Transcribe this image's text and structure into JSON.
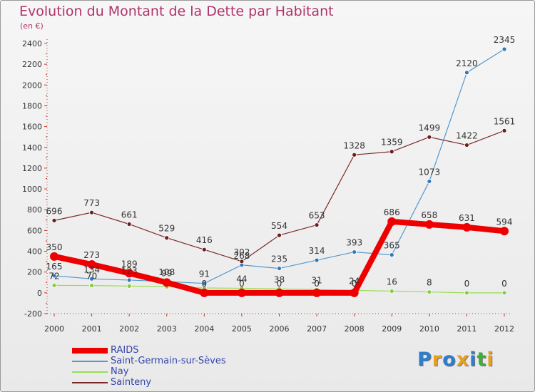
{
  "chart": {
    "title": "Evolution du Montant de la Dette par Habitant",
    "subtitle": "(en €)"
  },
  "brand": {
    "text": "Proxiti",
    "letters": [
      "P",
      "r",
      "o",
      "x",
      "i",
      "t",
      "i"
    ],
    "colors": [
      "#2a7fd1",
      "#e8a021",
      "#2a7fd1",
      "#e8a021",
      "#2a7fd1",
      "#3bb03b",
      "#e8a021"
    ]
  },
  "chart_data": {
    "type": "line",
    "title": "Evolution du Montant de la Dette par Habitant",
    "subtitle": "(en €)",
    "xlabel": "",
    "ylabel": "",
    "x": [
      2000,
      2001,
      2002,
      2003,
      2004,
      2005,
      2006,
      2007,
      2008,
      2009,
      2010,
      2011,
      2012
    ],
    "ylim": [
      -200,
      2400
    ],
    "yticks": [
      -200,
      0,
      200,
      400,
      600,
      800,
      1000,
      1200,
      1400,
      1600,
      1800,
      2000,
      2200,
      2400
    ],
    "grid": false,
    "legend": "bottom-left",
    "series": [
      {
        "name": "Nay",
        "color": "#99dd55",
        "values": [
          72,
          70,
          65,
          58,
          47,
          44,
          38,
          31,
          24,
          16,
          8,
          0,
          0
        ]
      },
      {
        "name": "Saint-Germain-sur-Sèves",
        "color": "#5599cc",
        "values": [
          165,
          134,
          123,
          108,
          91,
          268,
          235,
          314,
          393,
          365,
          1073,
          2120,
          2345
        ]
      },
      {
        "name": "Sainteny",
        "color": "#7a2a2a",
        "values": [
          696,
          773,
          661,
          529,
          416,
          302,
          554,
          653,
          1328,
          1359,
          1499,
          1422,
          1561
        ]
      },
      {
        "name": "RAIDS",
        "color": "#ee0000",
        "values": [
          350,
          273,
          189,
          99,
          0,
          0,
          0,
          0,
          0,
          686,
          658,
          631,
          594
        ]
      }
    ],
    "labels": {
      "Nay": [
        "72",
        "70",
        "",
        "",
        "",
        "44",
        "38",
        "31",
        "24",
        "16",
        "8",
        "0",
        "0"
      ],
      "Saint-Germain-sur-Sèves": [
        "165",
        "134",
        "123",
        "108",
        "91",
        "268",
        "235",
        "314",
        "393",
        "365",
        "1073",
        "2120",
        "2345"
      ],
      "Sainteny": [
        "696",
        "773",
        "661",
        "529",
        "416",
        "302",
        "554",
        "653",
        "1328",
        "1359",
        "1499",
        "1422",
        "1561"
      ],
      "RAIDS": [
        "350",
        "273",
        "189",
        "99",
        "0",
        "0",
        "0",
        "0",
        "0",
        "686",
        "658",
        "631",
        "594"
      ]
    },
    "legend_order": [
      "RAIDS",
      "Saint-Germain-sur-Sèves",
      "Nay",
      "Sainteny"
    ]
  }
}
